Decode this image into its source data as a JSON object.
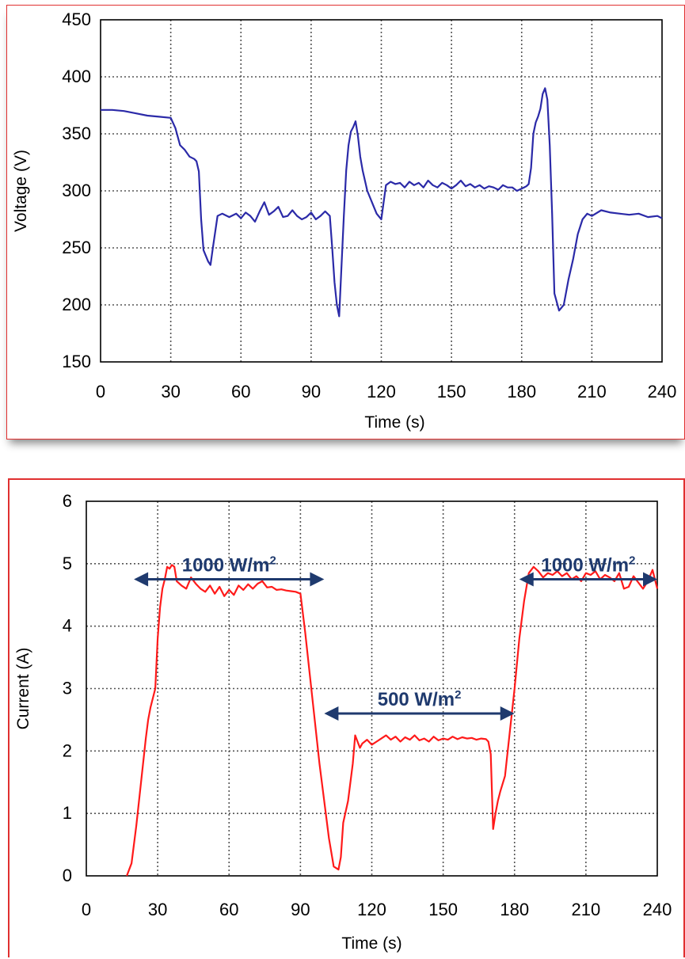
{
  "chart_data": [
    {
      "type": "line",
      "title": "",
      "xlabel": "Time (s)",
      "ylabel": "Voltage (V)",
      "xlim": [
        0,
        240
      ],
      "ylim": [
        150,
        450
      ],
      "xticks": [
        0,
        30,
        60,
        90,
        120,
        150,
        180,
        210,
        240
      ],
      "yticks": [
        150,
        200,
        250,
        300,
        350,
        400,
        450
      ],
      "grid": true,
      "series": [
        {
          "color": "#2b2aa8",
          "x": [
            0,
            5,
            10,
            15,
            20,
            25,
            30,
            32,
            34,
            36,
            38,
            40,
            41,
            42,
            43,
            44,
            46,
            47,
            48,
            50,
            52,
            55,
            58,
            60,
            62,
            64,
            66,
            68,
            70,
            72,
            74,
            76,
            78,
            80,
            82,
            84,
            86,
            88,
            90,
            92,
            94,
            96,
            98,
            99,
            100,
            101,
            102,
            103,
            104,
            105,
            106,
            107,
            108,
            109,
            110,
            111,
            112,
            114,
            116,
            118,
            120,
            122,
            124,
            126,
            128,
            130,
            132,
            134,
            136,
            138,
            140,
            142,
            144,
            146,
            148,
            150,
            152,
            154,
            156,
            158,
            160,
            162,
            164,
            166,
            168,
            170,
            172,
            174,
            176,
            178,
            180,
            181,
            182,
            183,
            184,
            185,
            186,
            187,
            188,
            189,
            190,
            191,
            192,
            193,
            194,
            196,
            198,
            200,
            202,
            204,
            206,
            208,
            210,
            214,
            218,
            222,
            226,
            230,
            234,
            238,
            240
          ],
          "values": [
            371,
            371,
            370,
            368,
            366,
            365,
            364,
            355,
            340,
            336,
            330,
            328,
            326,
            317,
            275,
            248,
            238,
            235,
            250,
            278,
            280,
            277,
            280,
            276,
            281,
            278,
            273,
            282,
            290,
            279,
            282,
            286,
            277,
            278,
            283,
            278,
            275,
            277,
            281,
            275,
            278,
            282,
            278,
            250,
            220,
            200,
            190,
            235,
            278,
            318,
            340,
            352,
            356,
            361,
            348,
            330,
            318,
            300,
            290,
            280,
            275,
            305,
            308,
            306,
            307,
            303,
            308,
            305,
            307,
            303,
            309,
            305,
            303,
            307,
            305,
            302,
            305,
            309,
            304,
            306,
            303,
            305,
            302,
            304,
            303,
            301,
            305,
            303,
            303,
            300,
            302,
            303,
            304,
            306,
            320,
            350,
            360,
            365,
            372,
            385,
            390,
            380,
            340,
            280,
            210,
            195,
            200,
            222,
            240,
            262,
            275,
            280,
            278,
            283,
            281,
            280,
            279,
            280,
            277,
            278,
            276
          ]
        }
      ]
    },
    {
      "type": "line",
      "title": "",
      "xlabel": "Time (s)",
      "ylabel": "Current (A)",
      "xlim": [
        0,
        240
      ],
      "ylim": [
        0,
        6
      ],
      "xticks": [
        0,
        30,
        60,
        90,
        120,
        150,
        180,
        210,
        240
      ],
      "yticks": [
        0,
        1,
        2,
        3,
        4,
        5,
        6
      ],
      "grid": true,
      "annotations": [
        {
          "label": "1000 W/m",
          "sup": "2",
          "x_from": 20,
          "x_to": 100,
          "y": 4.75
        },
        {
          "label": "500 W/m",
          "sup": "2",
          "x_from": 100,
          "x_to": 180,
          "y": 2.6
        },
        {
          "label": "1000 W/m",
          "sup": "2",
          "x_from": 182,
          "x_to": 240,
          "y": 4.75
        }
      ],
      "series": [
        {
          "color": "#ff1a1a",
          "x": [
            17,
            19,
            21,
            23,
            25,
            26,
            27,
            29,
            30,
            31,
            32,
            33,
            34,
            35,
            36,
            37,
            38,
            40,
            42,
            44,
            46,
            48,
            50,
            52,
            54,
            56,
            58,
            60,
            62,
            64,
            66,
            68,
            70,
            72,
            74,
            76,
            78,
            80,
            82,
            84,
            86,
            88,
            90,
            92,
            94,
            96,
            98,
            100,
            102,
            104,
            106,
            107,
            108,
            110,
            112,
            113,
            114,
            115,
            116,
            118,
            120,
            122,
            124,
            126,
            128,
            130,
            132,
            134,
            136,
            138,
            140,
            142,
            144,
            146,
            148,
            150,
            152,
            154,
            156,
            158,
            160,
            162,
            164,
            166,
            168,
            169,
            170,
            171,
            172,
            173,
            174,
            176,
            178,
            180,
            182,
            184,
            186,
            188,
            190,
            192,
            194,
            196,
            198,
            200,
            202,
            204,
            206,
            208,
            210,
            212,
            214,
            216,
            218,
            220,
            222,
            224,
            226,
            228,
            230,
            232,
            234,
            236,
            238,
            240
          ],
          "values": [
            0.0,
            0.2,
            0.8,
            1.5,
            2.2,
            2.5,
            2.7,
            3.0,
            3.8,
            4.3,
            4.6,
            4.75,
            4.95,
            4.92,
            4.98,
            4.95,
            4.72,
            4.65,
            4.6,
            4.78,
            4.68,
            4.6,
            4.55,
            4.65,
            4.52,
            4.63,
            4.48,
            4.58,
            4.5,
            4.65,
            4.58,
            4.67,
            4.6,
            4.68,
            4.72,
            4.62,
            4.63,
            4.58,
            4.59,
            4.57,
            4.56,
            4.55,
            4.52,
            3.9,
            3.2,
            2.5,
            1.8,
            1.2,
            0.6,
            0.15,
            0.1,
            0.3,
            0.85,
            1.2,
            1.8,
            2.25,
            2.15,
            2.05,
            2.12,
            2.18,
            2.1,
            2.15,
            2.2,
            2.25,
            2.18,
            2.23,
            2.15,
            2.22,
            2.18,
            2.25,
            2.17,
            2.2,
            2.15,
            2.23,
            2.17,
            2.2,
            2.18,
            2.23,
            2.19,
            2.22,
            2.2,
            2.21,
            2.18,
            2.2,
            2.19,
            2.15,
            1.95,
            0.75,
            1.0,
            1.2,
            1.35,
            1.6,
            2.3,
            3.0,
            3.8,
            4.4,
            4.85,
            4.95,
            4.88,
            4.78,
            4.85,
            4.82,
            4.88,
            4.8,
            4.85,
            4.75,
            4.8,
            4.72,
            4.85,
            4.82,
            4.88,
            4.75,
            4.82,
            4.78,
            4.72,
            4.85,
            4.6,
            4.63,
            4.8,
            4.7,
            4.6,
            4.72,
            4.9,
            4.6
          ]
        }
      ]
    }
  ]
}
